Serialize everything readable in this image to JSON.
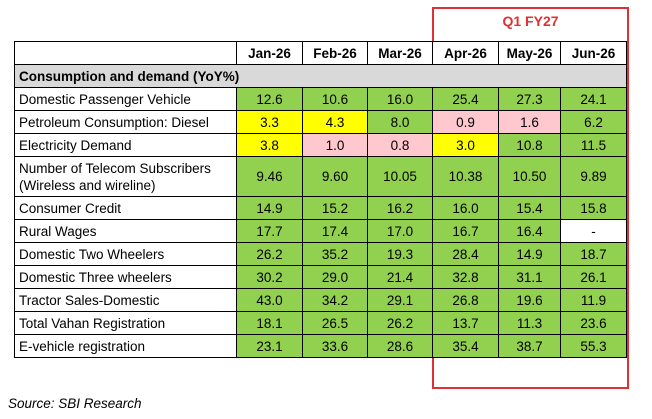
{
  "header": {
    "q1_label": "Q1 FY27"
  },
  "columns": [
    "Jan-26",
    "Feb-26",
    "Mar-26",
    "Apr-26",
    "May-26",
    "Jun-26"
  ],
  "section_label": "Consumption and demand (YoY%)",
  "rows": [
    {
      "label": "Domestic Passenger Vehicle",
      "values": [
        "12.6",
        "10.6",
        "16.0",
        "25.4",
        "27.3",
        "24.1"
      ],
      "colors": [
        "g",
        "g",
        "g",
        "g",
        "g",
        "g"
      ]
    },
    {
      "label": "Petroleum Consumption: Diesel",
      "values": [
        "3.3",
        "4.3",
        "8.0",
        "0.9",
        "1.6",
        "6.2"
      ],
      "colors": [
        "y",
        "y",
        "g",
        "p",
        "p",
        "g"
      ]
    },
    {
      "label": "Electricity Demand",
      "values": [
        "3.8",
        "1.0",
        "0.8",
        "3.0",
        "10.8",
        "11.5"
      ],
      "colors": [
        "y",
        "p",
        "p",
        "y",
        "g",
        "g"
      ]
    },
    {
      "label": "Number of Telecom Subscribers (Wireless and wireline)",
      "values": [
        "9.46",
        "9.60",
        "10.05",
        "10.38",
        "10.50",
        "9.89"
      ],
      "colors": [
        "g",
        "g",
        "g",
        "g",
        "g",
        "g"
      ],
      "tall": true
    },
    {
      "label": "Consumer Credit",
      "values": [
        "14.9",
        "15.2",
        "16.2",
        "16.0",
        "15.4",
        "15.8"
      ],
      "colors": [
        "g",
        "g",
        "g",
        "g",
        "g",
        "g"
      ]
    },
    {
      "label": "Rural Wages",
      "values": [
        "17.7",
        "17.4",
        "17.0",
        "16.7",
        "16.4",
        "-"
      ],
      "colors": [
        "g",
        "g",
        "g",
        "g",
        "g",
        "w"
      ]
    },
    {
      "label": "Domestic Two Wheelers",
      "values": [
        "26.2",
        "35.2",
        "19.3",
        "28.4",
        "14.9",
        "18.7"
      ],
      "colors": [
        "g",
        "g",
        "g",
        "g",
        "g",
        "g"
      ]
    },
    {
      "label": "Domestic  Three wheelers",
      "values": [
        "30.2",
        "29.0",
        "21.4",
        "32.8",
        "31.1",
        "26.1"
      ],
      "colors": [
        "g",
        "g",
        "g",
        "g",
        "g",
        "g"
      ]
    },
    {
      "label": "Tractor Sales-Domestic",
      "values": [
        "43.0",
        "34.2",
        "29.1",
        "26.8",
        "19.6",
        "11.9"
      ],
      "colors": [
        "g",
        "g",
        "g",
        "g",
        "g",
        "g"
      ]
    },
    {
      "label": "Total Vahan Registration",
      "values": [
        "18.1",
        "26.5",
        "26.2",
        "13.7",
        "11.3",
        "23.6"
      ],
      "colors": [
        "g",
        "g",
        "g",
        "g",
        "g",
        "g"
      ]
    },
    {
      "label": "E-vehicle registration",
      "values": [
        "23.1",
        "33.6",
        "28.6",
        "35.4",
        "38.7",
        "55.3"
      ],
      "colors": [
        "g",
        "g",
        "g",
        "g",
        "g",
        "g"
      ]
    }
  ],
  "source": "Source: SBI Research",
  "colors": {
    "green": "#92d050",
    "yellow": "#ffff00",
    "pink": "#ffc7ce",
    "highlight_box": "#e0303a"
  }
}
